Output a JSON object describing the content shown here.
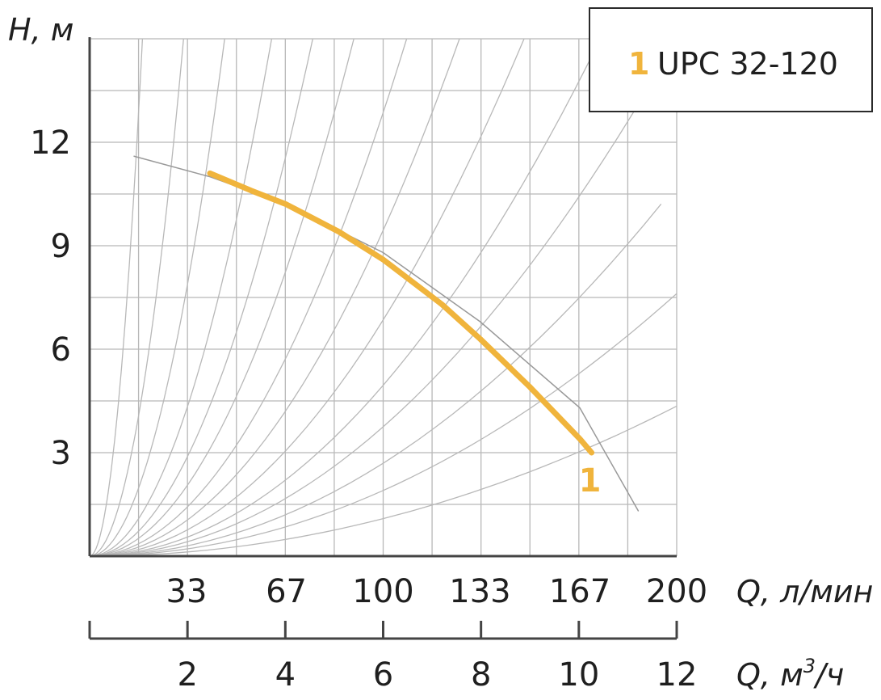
{
  "chart_data": {
    "type": "line",
    "title": "",
    "ylabel": "H, м",
    "xlabel": "Q, л/мин",
    "xlabel2": "Q, м³/ч",
    "xlabel2_main": "Q, м",
    "xlabel2_sup": "3",
    "xlabel2_tail": "/ч",
    "xlim": [
      0,
      200
    ],
    "ylim": [
      0,
      15
    ],
    "y_ticks": [
      3,
      6,
      9,
      12
    ],
    "x_ticks": [
      33,
      67,
      100,
      133,
      167,
      200
    ],
    "x2_ticks": [
      2,
      4,
      6,
      8,
      10,
      12
    ],
    "grid": true,
    "legend_position": "top-right",
    "colors": {
      "series": "#f0b43c",
      "grid": "#b8b8b8",
      "axis": "#444444",
      "system": "#999999"
    },
    "system_curve": {
      "x": [
        15,
        41,
        67,
        100,
        133,
        167,
        187
      ],
      "y": [
        11.6,
        11.0,
        10.2,
        8.8,
        6.8,
        4.3,
        1.3
      ]
    },
    "series": [
      {
        "name": "UPC 32-120",
        "label": "1",
        "x": [
          41,
          55,
          67,
          85,
          100,
          120,
          133,
          150,
          167,
          171
        ],
        "y": [
          11.1,
          10.6,
          10.2,
          9.4,
          8.6,
          7.3,
          6.3,
          4.9,
          3.4,
          3.0
        ]
      }
    ]
  },
  "legend": {
    "number": "1",
    "text": "UPC 32-120"
  }
}
